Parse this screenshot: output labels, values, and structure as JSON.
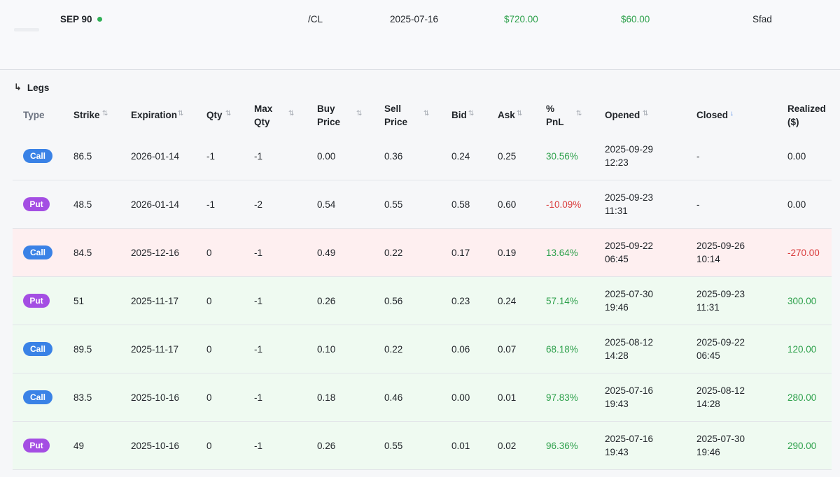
{
  "summary": {
    "name": "SEP 90",
    "symbol": "/CL",
    "date": "2025-07-16",
    "value1": "$720.00",
    "value2": "$60.00",
    "owner": "Sfad",
    "status_color": "#30b056"
  },
  "legs": {
    "title": "Legs",
    "title_icon": "arrow-down-right-icon",
    "columns": {
      "type": "Type",
      "strike": "Strike",
      "expiration": "Expiration",
      "qty": "Qty",
      "max_qty": [
        "Max",
        "Qty"
      ],
      "buy_price": [
        "Buy",
        "Price"
      ],
      "sell_price": [
        "Sell",
        "Price"
      ],
      "bid": "Bid",
      "ask": "Ask",
      "pnl": [
        "%",
        "PnL"
      ],
      "opened": "Opened",
      "closed": "Closed",
      "realized": [
        "Realized",
        "($)"
      ]
    },
    "rows": [
      {
        "type": "Call",
        "strike": "86.5",
        "expiration": "2026-01-14",
        "qty": "-1",
        "max_qty": "-1",
        "buy": "0.00",
        "sell": "0.36",
        "bid": "0.24",
        "ask": "0.25",
        "pnl": "30.56%",
        "opened": [
          "2025-09-29",
          "12:23"
        ],
        "closed": [
          "-"
        ],
        "realized": "0.00",
        "status": "neutral",
        "pnl_sign": "pos",
        "realized_sign": "none"
      },
      {
        "type": "Put",
        "strike": "48.5",
        "expiration": "2026-01-14",
        "qty": "-1",
        "max_qty": "-2",
        "buy": "0.54",
        "sell": "0.55",
        "bid": "0.58",
        "ask": "0.60",
        "pnl": "-10.09%",
        "opened": [
          "2025-09-23",
          "11:31"
        ],
        "closed": [
          "-"
        ],
        "realized": "0.00",
        "status": "neutral",
        "pnl_sign": "neg",
        "realized_sign": "none"
      },
      {
        "type": "Call",
        "strike": "84.5",
        "expiration": "2025-12-16",
        "qty": "0",
        "max_qty": "-1",
        "buy": "0.49",
        "sell": "0.22",
        "bid": "0.17",
        "ask": "0.19",
        "pnl": "13.64%",
        "opened": [
          "2025-09-22",
          "06:45"
        ],
        "closed": [
          "2025-09-26",
          "10:14"
        ],
        "realized": "-270.00",
        "status": "loss",
        "pnl_sign": "pos",
        "realized_sign": "neg"
      },
      {
        "type": "Put",
        "strike": "51",
        "expiration": "2025-11-17",
        "qty": "0",
        "max_qty": "-1",
        "buy": "0.26",
        "sell": "0.56",
        "bid": "0.23",
        "ask": "0.24",
        "pnl": "57.14%",
        "opened": [
          "2025-07-30",
          "19:46"
        ],
        "closed": [
          "2025-09-23",
          "11:31"
        ],
        "realized": "300.00",
        "status": "gain",
        "pnl_sign": "pos",
        "realized_sign": "pos"
      },
      {
        "type": "Call",
        "strike": "89.5",
        "expiration": "2025-11-17",
        "qty": "0",
        "max_qty": "-1",
        "buy": "0.10",
        "sell": "0.22",
        "bid": "0.06",
        "ask": "0.07",
        "pnl": "68.18%",
        "opened": [
          "2025-08-12",
          "14:28"
        ],
        "closed": [
          "2025-09-22",
          "06:45"
        ],
        "realized": "120.00",
        "status": "gain",
        "pnl_sign": "pos",
        "realized_sign": "pos"
      },
      {
        "type": "Call",
        "strike": "83.5",
        "expiration": "2025-10-16",
        "qty": "0",
        "max_qty": "-1",
        "buy": "0.18",
        "sell": "0.46",
        "bid": "0.00",
        "ask": "0.01",
        "pnl": "97.83%",
        "opened": [
          "2025-07-16",
          "19:43"
        ],
        "closed": [
          "2025-08-12",
          "14:28"
        ],
        "realized": "280.00",
        "status": "gain",
        "pnl_sign": "pos",
        "realized_sign": "pos"
      },
      {
        "type": "Put",
        "strike": "49",
        "expiration": "2025-10-16",
        "qty": "0",
        "max_qty": "-1",
        "buy": "0.26",
        "sell": "0.55",
        "bid": "0.01",
        "ask": "0.02",
        "pnl": "96.36%",
        "opened": [
          "2025-07-16",
          "19:43"
        ],
        "closed": [
          "2025-07-30",
          "19:46"
        ],
        "realized": "290.00",
        "status": "gain",
        "pnl_sign": "pos",
        "realized_sign": "pos"
      }
    ]
  },
  "colors": {
    "positive": "#2da04b",
    "negative": "#d93a3a",
    "call_badge": "#3a82e6",
    "put_badge": "#a44ee3",
    "sort_active": "#3c7ce6"
  }
}
